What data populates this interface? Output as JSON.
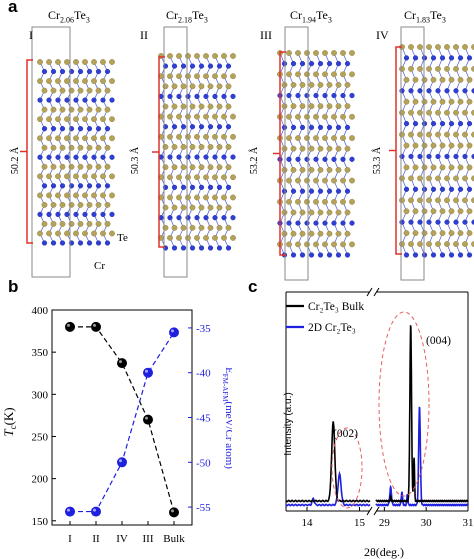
{
  "panel_a": {
    "letter": "a",
    "structures": [
      {
        "roman": "I",
        "formula_base": "Cr",
        "formula_sub": "2.06",
        "formula_tail": "Te",
        "formula_tail_sub": "3",
        "length": "50.2 Å"
      },
      {
        "roman": "II",
        "formula_base": "Cr",
        "formula_sub": "2.18",
        "formula_tail": "Te",
        "formula_tail_sub": "3",
        "length": "50.3 Å"
      },
      {
        "roman": "III",
        "formula_base": "Cr",
        "formula_sub": "1.94",
        "formula_tail": "Te",
        "formula_tail_sub": "3",
        "length": "53.2 Å"
      },
      {
        "roman": "IV",
        "formula_base": "Cr",
        "formula_sub": "1.83",
        "formula_tail": "Te",
        "formula_tail_sub": "3",
        "length": "53.3 Å"
      }
    ],
    "atom_labels": {
      "te": "Te",
      "cr": "Cr"
    },
    "colors": {
      "te": "#b5a25a",
      "cr": "#2f3fd6",
      "bracket": "#e0302a"
    }
  },
  "panel_b": {
    "letter": "b",
    "ylabel_left_italic": "T",
    "ylabel_left_sub": "c",
    "ylabel_left_unit": "(K)",
    "ylabel_right": "E",
    "ylabel_right_sub": "FM-AFM",
    "ylabel_right_unit": "(meV/Cr atom)",
    "left_ticks": [
      "150",
      "200",
      "250",
      "300",
      "350",
      "400"
    ],
    "right_ticks": [
      "-35",
      "-40",
      "-45",
      "-50",
      "-55"
    ],
    "categories": [
      "I",
      "II",
      "IV",
      "III",
      "Bulk"
    ]
  },
  "panel_c": {
    "letter": "c",
    "legend": [
      "Cr₂Te₃ Bulk",
      "2D Cr₂Te₃"
    ],
    "ylabel": "Intensity (a.u.)",
    "xlabel": "2θ(deg.)",
    "x_ticks_left": [
      "14",
      "15"
    ],
    "x_ticks_right": [
      "29",
      "30",
      "31"
    ],
    "peak_labels": [
      "(002)",
      "(004)"
    ]
  },
  "chart_data": [
    {
      "type": "line",
      "xlabel": "",
      "ylabel": "Tc(K)",
      "categories": [
        "I",
        "II",
        "IV",
        "III",
        "Bulk"
      ],
      "series": [
        {
          "values": [
            380,
            380,
            337,
            270,
            160
          ],
          "color": "#000000",
          "axis": "left"
        },
        {
          "values": [
            -55.5,
            -55.5,
            -50,
            -40,
            -35.5
          ],
          "color": "#1f1fe0",
          "axis": "right"
        }
      ],
      "ylim_left": [
        145,
        400
      ],
      "ylim_right": [
        -57,
        -33
      ]
    },
    {
      "type": "line",
      "xlabel": "2θ(deg.)",
      "ylabel": "Intensity (a.u.)",
      "series": [
        {
          "name": "Cr₂Te₃ Bulk",
          "color": "#000000",
          "peaks": [
            [
              14.5,
              0.36
            ],
            [
              29.63,
              0.8
            ]
          ]
        },
        {
          "name": "2D Cr₂Te₃",
          "color": "#1f1fe0",
          "peaks": [
            [
              14.62,
              0.14
            ],
            [
              29.84,
              0.45
            ]
          ]
        }
      ]
    }
  ]
}
